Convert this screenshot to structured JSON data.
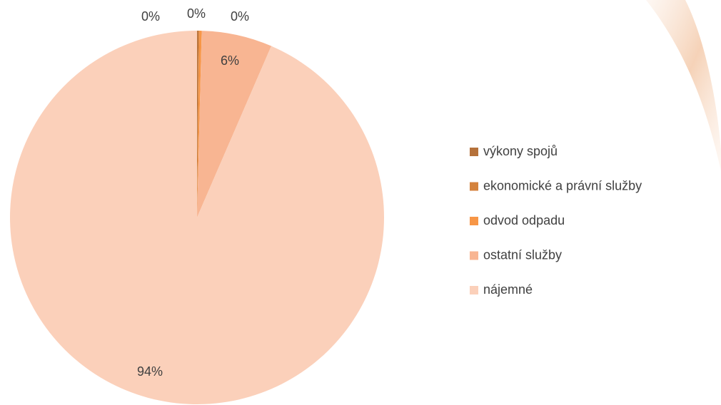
{
  "chart_data": {
    "type": "pie",
    "categories": [
      "výkony spojů",
      "ekonomické a právní služby",
      "odvod odpadu",
      "ostatní služby",
      "nájemné"
    ],
    "values": [
      0.1,
      0.1,
      0.2,
      6.1,
      93.5
    ],
    "value_labels": [
      "0%",
      "0%",
      "0%",
      "6%",
      "94%"
    ],
    "colors": [
      "#b5713a",
      "#d4823c",
      "#f79646",
      "#f8b592",
      "#fbd0ba"
    ],
    "legend": "right"
  }
}
